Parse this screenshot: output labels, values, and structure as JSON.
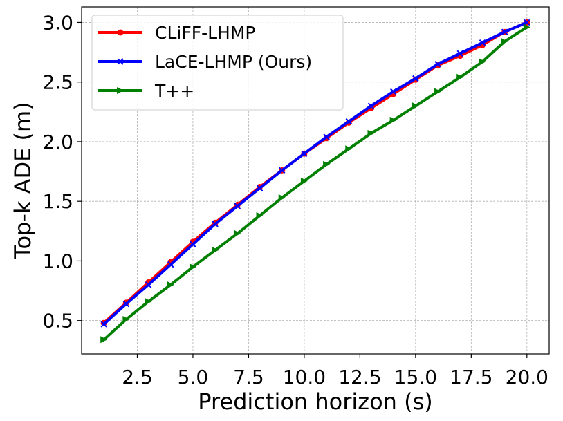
{
  "chart_data": {
    "type": "line",
    "xlabel": "Prediction horizon (s)",
    "ylabel": "Top-k ADE (m)",
    "xlim": [
      -0.0,
      21.0
    ],
    "ylim": [
      0.22,
      3.13
    ],
    "xticks": [
      2.5,
      5.0,
      7.5,
      10.0,
      12.5,
      15.0,
      17.5,
      20.0
    ],
    "xtick_labels": [
      "2.5",
      "5.0",
      "7.5",
      "10.0",
      "12.5",
      "15.0",
      "17.5",
      "20.0"
    ],
    "yticks": [
      0.5,
      1.0,
      1.5,
      2.0,
      2.5,
      3.0
    ],
    "ytick_labels": [
      "0.5",
      "1.0",
      "1.5",
      "2.0",
      "2.5",
      "3.0"
    ],
    "grid": true,
    "legend_position": "top-left",
    "x": [
      1,
      2,
      3,
      4,
      5,
      6,
      7,
      8,
      9,
      10,
      11,
      12,
      13,
      14,
      15,
      16,
      17,
      18,
      19,
      20
    ],
    "series": [
      {
        "name": "CLiFF-LHMP",
        "color": "#ff0000",
        "marker": "circle",
        "values": [
          0.48,
          0.65,
          0.82,
          0.99,
          1.16,
          1.32,
          1.47,
          1.62,
          1.76,
          1.9,
          2.03,
          2.16,
          2.28,
          2.4,
          2.52,
          2.64,
          2.72,
          2.81,
          2.92,
          3.0
        ]
      },
      {
        "name": "LaCE-LHMP (Ours)",
        "color": "#0000ff",
        "marker": "x",
        "values": [
          0.47,
          0.64,
          0.8,
          0.97,
          1.14,
          1.31,
          1.46,
          1.61,
          1.76,
          1.9,
          2.04,
          2.17,
          2.3,
          2.42,
          2.53,
          2.65,
          2.74,
          2.83,
          2.92,
          3.0
        ]
      },
      {
        "name": "T++",
        "color": "#008000",
        "marker": "triangle-right",
        "values": [
          0.34,
          0.51,
          0.66,
          0.8,
          0.95,
          1.09,
          1.23,
          1.38,
          1.53,
          1.67,
          1.81,
          1.94,
          2.07,
          2.18,
          2.3,
          2.42,
          2.54,
          2.67,
          2.84,
          2.96
        ]
      }
    ]
  }
}
